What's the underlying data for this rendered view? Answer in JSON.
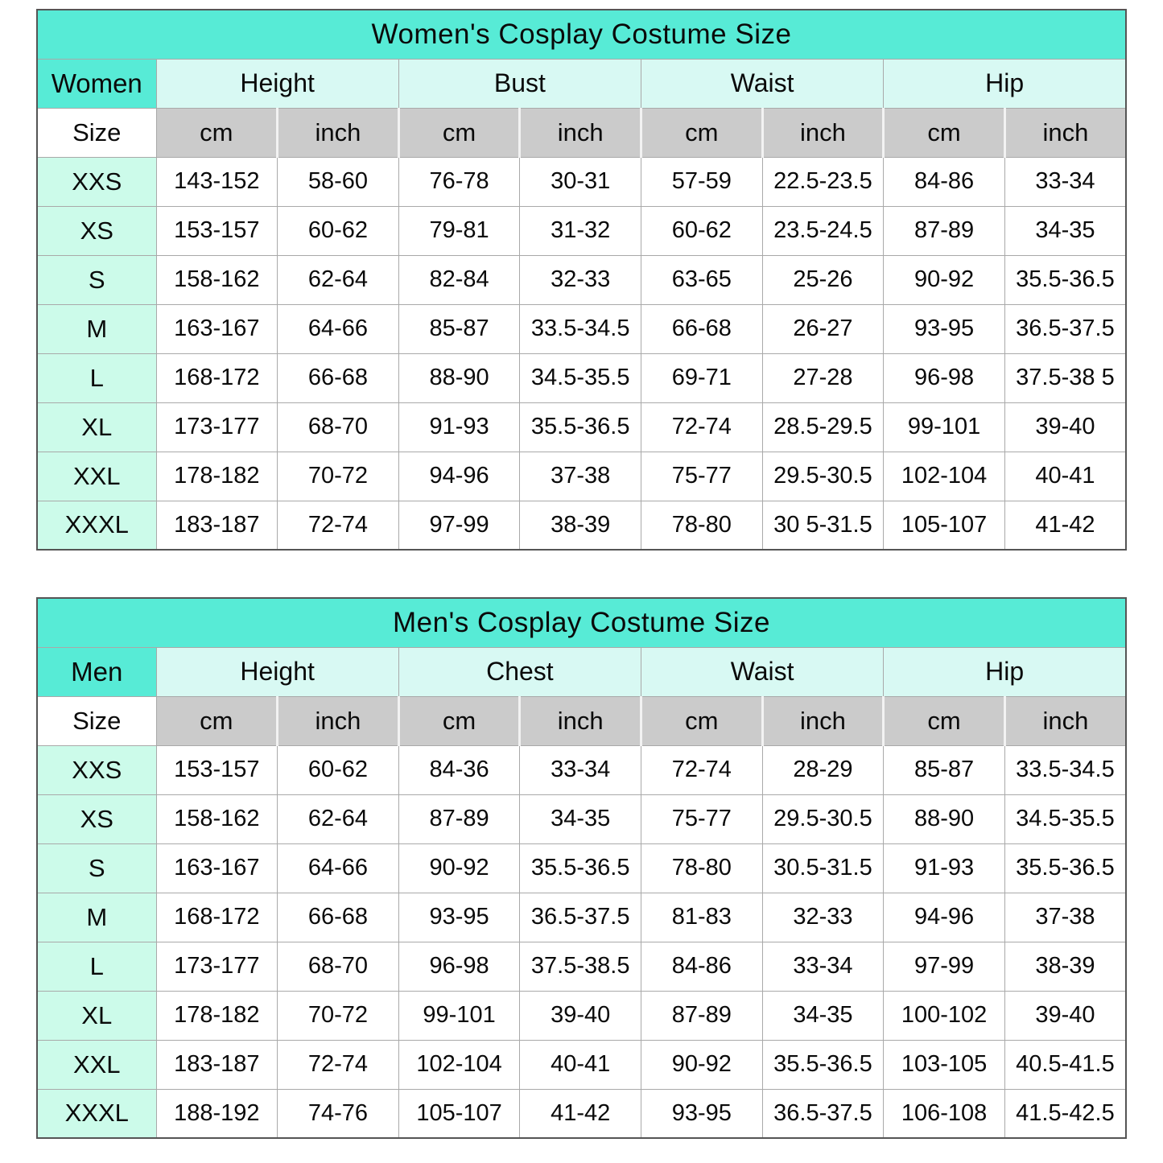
{
  "colors": {
    "title_bg": "#57ebd6",
    "corner_bg": "#57ebd6",
    "group_bg": "#d8f9f3",
    "label_bg": "#ccfbea",
    "unit_bg": "#cbcbcb",
    "cell_bg": "#ffffff",
    "grid_line": "#a9a9a9",
    "outer_border": "#555555",
    "unit_divider": "#f2f2f2",
    "text_color": "#0a0a0a",
    "page_bg": "#ffffff"
  },
  "tables": [
    {
      "title": "Women's Cosplay Costume Size",
      "corner_label": "Women",
      "size_label": "Size",
      "groups": [
        "Height",
        "Bust",
        "Waist",
        "Hip"
      ],
      "units": [
        "cm",
        "inch",
        "cm",
        "inch",
        "cm",
        "inch",
        "cm",
        "inch"
      ],
      "rows": [
        {
          "size": "XXS",
          "values": [
            "143-152",
            "58-60",
            "76-78",
            "30-31",
            "57-59",
            "22.5-23.5",
            "84-86",
            "33-34"
          ]
        },
        {
          "size": "XS",
          "values": [
            "153-157",
            "60-62",
            "79-81",
            "31-32",
            "60-62",
            "23.5-24.5",
            "87-89",
            "34-35"
          ]
        },
        {
          "size": "S",
          "values": [
            "158-162",
            "62-64",
            "82-84",
            "32-33",
            "63-65",
            "25-26",
            "90-92",
            "35.5-36.5"
          ]
        },
        {
          "size": "M",
          "values": [
            "163-167",
            "64-66",
            "85-87",
            "33.5-34.5",
            "66-68",
            "26-27",
            "93-95",
            "36.5-37.5"
          ]
        },
        {
          "size": "L",
          "values": [
            "168-172",
            "66-68",
            "88-90",
            "34.5-35.5",
            "69-71",
            "27-28",
            "96-98",
            "37.5-38 5"
          ]
        },
        {
          "size": "XL",
          "values": [
            "173-177",
            "68-70",
            "91-93",
            "35.5-36.5",
            "72-74",
            "28.5-29.5",
            "99-101",
            "39-40"
          ]
        },
        {
          "size": "XXL",
          "values": [
            "178-182",
            "70-72",
            "94-96",
            "37-38",
            "75-77",
            "29.5-30.5",
            "102-104",
            "40-41"
          ]
        },
        {
          "size": "XXXL",
          "values": [
            "183-187",
            "72-74",
            "97-99",
            "38-39",
            "78-80",
            "30 5-31.5",
            "105-107",
            "41-42"
          ]
        }
      ]
    },
    {
      "title": "Men's Cosplay Costume Size",
      "corner_label": "Men",
      "size_label": "Size",
      "groups": [
        "Height",
        "Chest",
        "Waist",
        "Hip"
      ],
      "units": [
        "cm",
        "inch",
        "cm",
        "inch",
        "cm",
        "inch",
        "cm",
        "inch"
      ],
      "rows": [
        {
          "size": "XXS",
          "values": [
            "153-157",
            "60-62",
            "84-36",
            "33-34",
            "72-74",
            "28-29",
            "85-87",
            "33.5-34.5"
          ]
        },
        {
          "size": "XS",
          "values": [
            "158-162",
            "62-64",
            "87-89",
            "34-35",
            "75-77",
            "29.5-30.5",
            "88-90",
            "34.5-35.5"
          ]
        },
        {
          "size": "S",
          "values": [
            "163-167",
            "64-66",
            "90-92",
            "35.5-36.5",
            "78-80",
            "30.5-31.5",
            "91-93",
            "35.5-36.5"
          ]
        },
        {
          "size": "M",
          "values": [
            "168-172",
            "66-68",
            "93-95",
            "36.5-37.5",
            "81-83",
            "32-33",
            "94-96",
            "37-38"
          ]
        },
        {
          "size": "L",
          "values": [
            "173-177",
            "68-70",
            "96-98",
            "37.5-38.5",
            "84-86",
            "33-34",
            "97-99",
            "38-39"
          ]
        },
        {
          "size": "XL",
          "values": [
            "178-182",
            "70-72",
            "99-101",
            "39-40",
            "87-89",
            "34-35",
            "100-102",
            "39-40"
          ]
        },
        {
          "size": "XXL",
          "values": [
            "183-187",
            "72-74",
            "102-104",
            "40-41",
            "90-92",
            "35.5-36.5",
            "103-105",
            "40.5-41.5"
          ]
        },
        {
          "size": "XXXL",
          "values": [
            "188-192",
            "74-76",
            "105-107",
            "41-42",
            "93-95",
            "36.5-37.5",
            "106-108",
            "41.5-42.5"
          ]
        }
      ]
    }
  ]
}
